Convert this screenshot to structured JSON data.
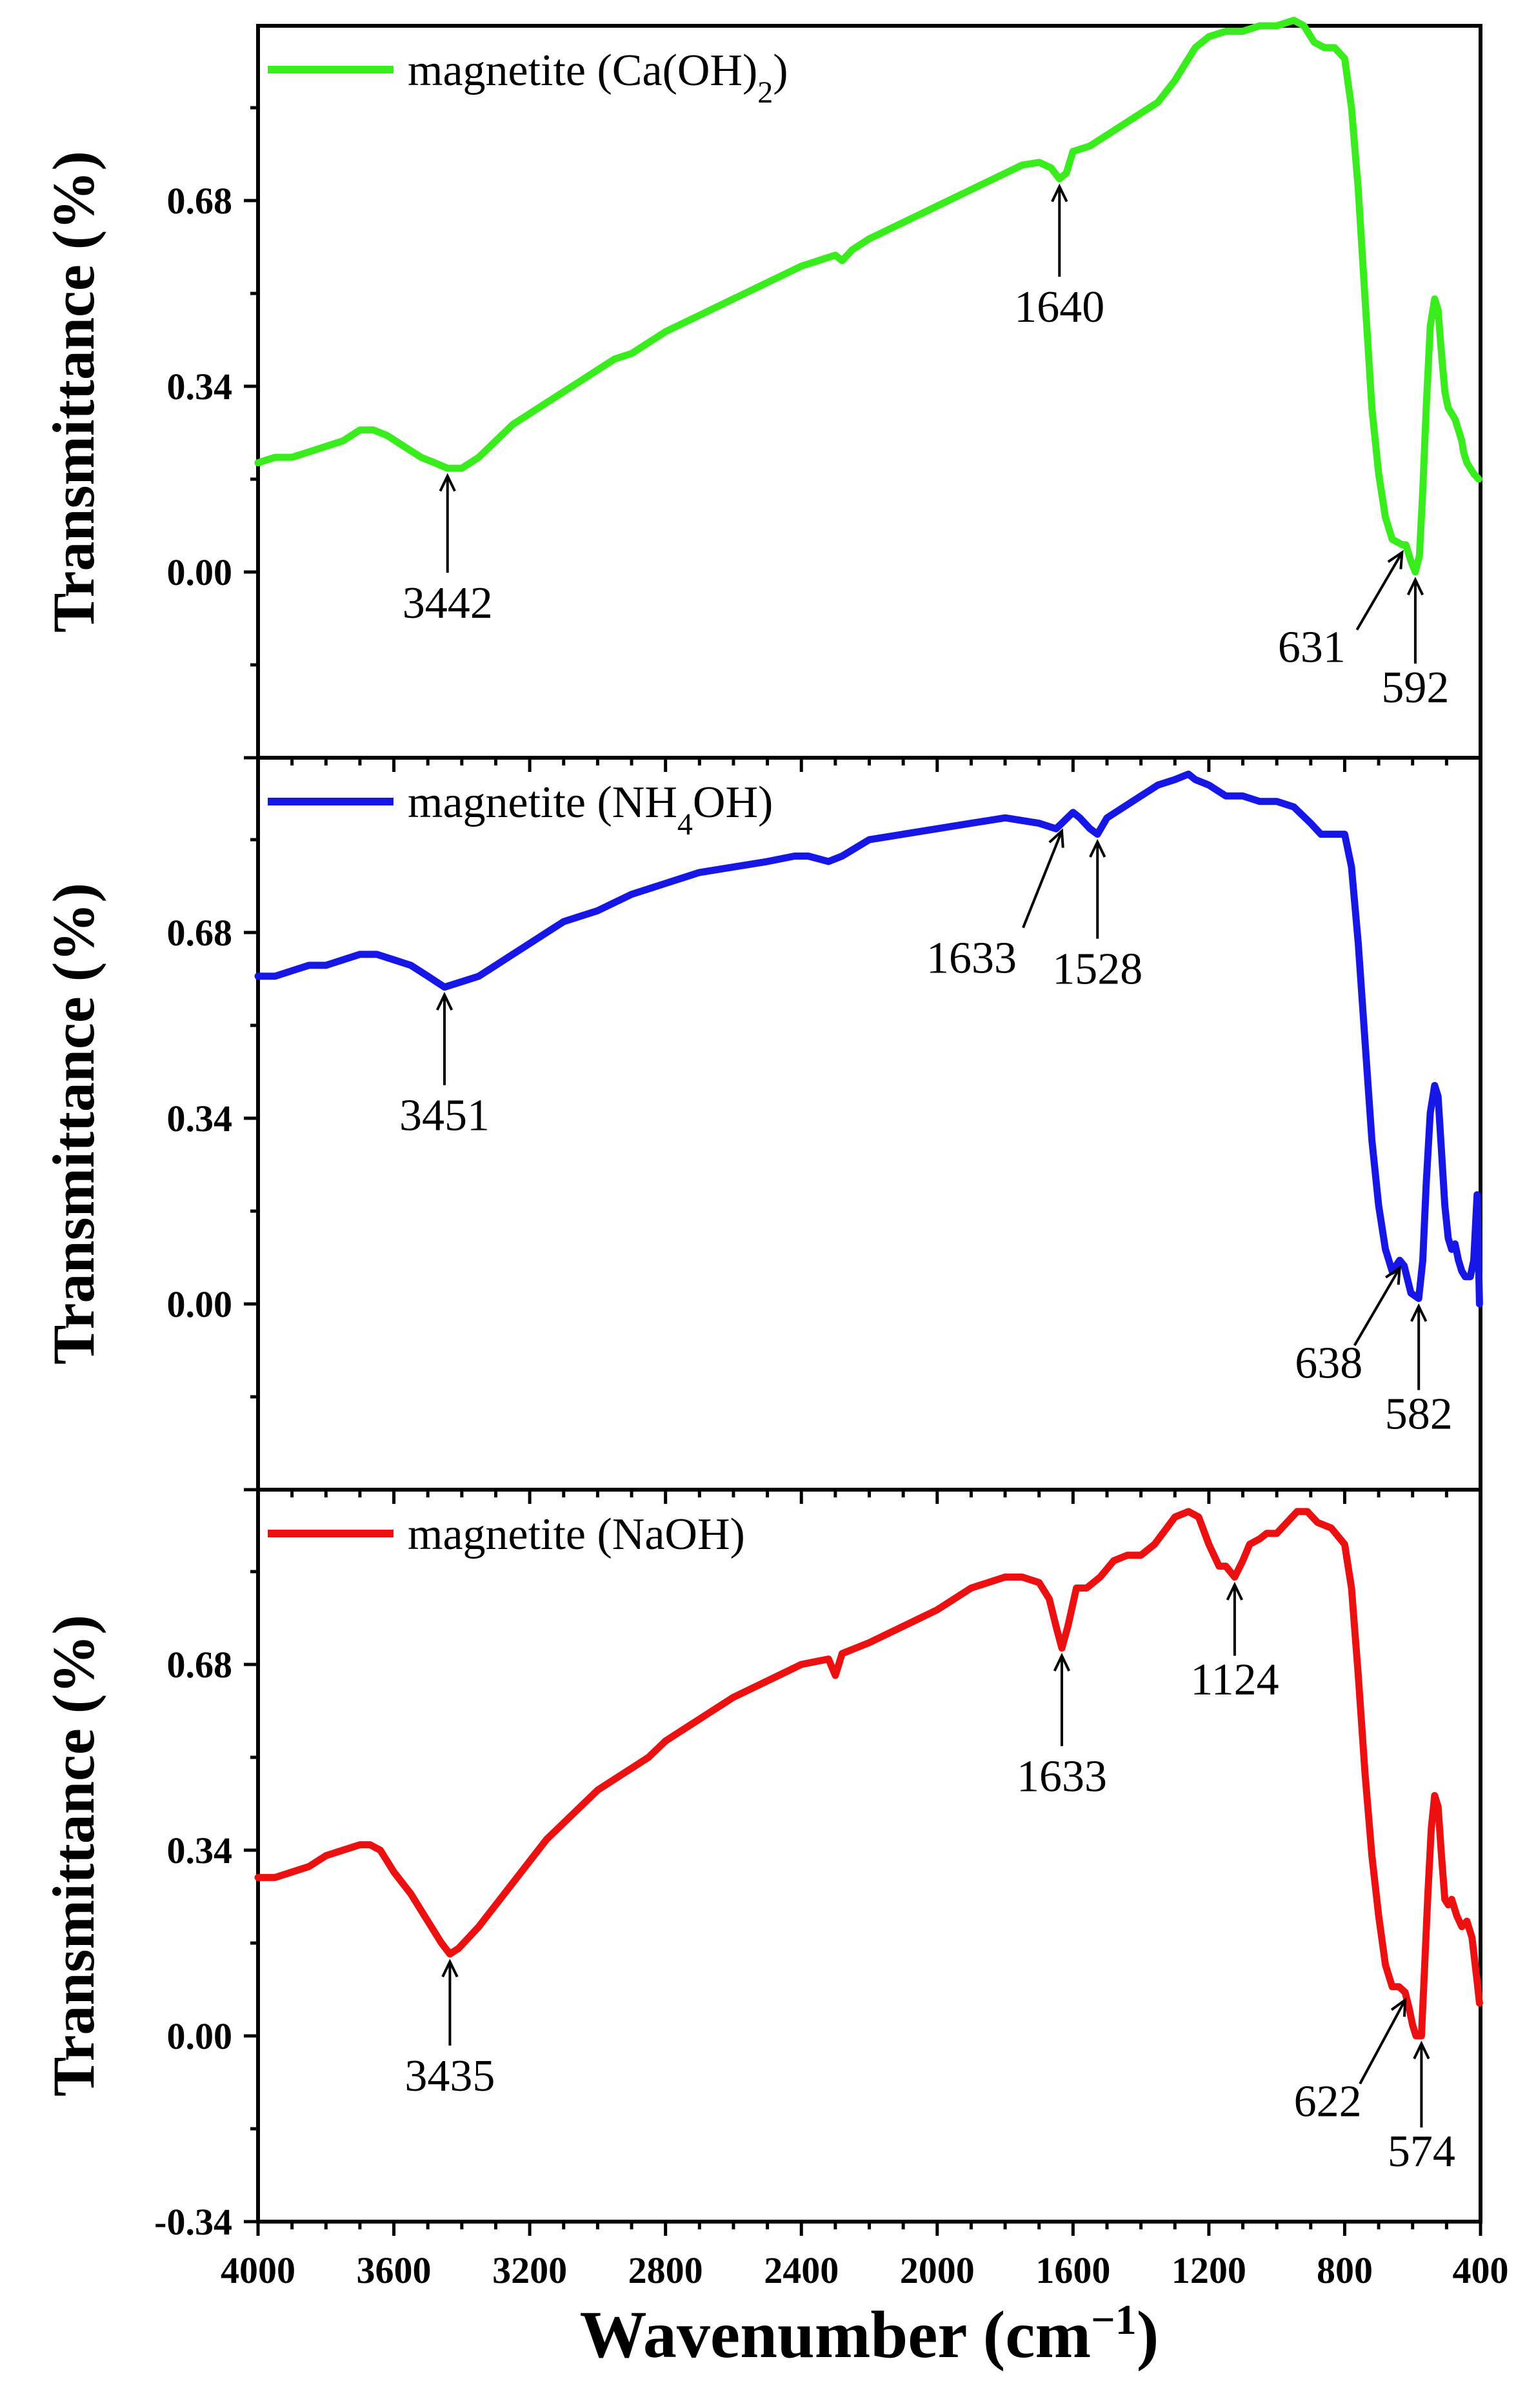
{
  "chart_data": [
    {
      "type": "line",
      "series": [
        {
          "name": "magnetite (Ca(OH)₂)",
          "color": "#39ec1c"
        }
      ],
      "legend_parts": {
        "main": "magnetite (Ca(OH)",
        "sub": "2",
        "tail": ")"
      },
      "ylabel": "Transmittance (%)",
      "yticks": [
        "0.00",
        "0.34",
        "0.68"
      ],
      "ylim": [
        -0.34,
        1.0
      ],
      "xlim": [
        4000,
        400
      ],
      "points": [
        [
          4000,
          0.2
        ],
        [
          3950,
          0.21
        ],
        [
          3900,
          0.21
        ],
        [
          3850,
          0.22
        ],
        [
          3800,
          0.23
        ],
        [
          3750,
          0.24
        ],
        [
          3700,
          0.26
        ],
        [
          3660,
          0.26
        ],
        [
          3620,
          0.25
        ],
        [
          3570,
          0.23
        ],
        [
          3520,
          0.21
        ],
        [
          3480,
          0.2
        ],
        [
          3442,
          0.19
        ],
        [
          3400,
          0.19
        ],
        [
          3350,
          0.21
        ],
        [
          3300,
          0.24
        ],
        [
          3250,
          0.27
        ],
        [
          3200,
          0.29
        ],
        [
          3150,
          0.31
        ],
        [
          3100,
          0.33
        ],
        [
          3050,
          0.35
        ],
        [
          3000,
          0.37
        ],
        [
          2950,
          0.39
        ],
        [
          2900,
          0.4
        ],
        [
          2850,
          0.42
        ],
        [
          2800,
          0.44
        ],
        [
          2700,
          0.47
        ],
        [
          2600,
          0.5
        ],
        [
          2500,
          0.53
        ],
        [
          2400,
          0.56
        ],
        [
          2300,
          0.58
        ],
        [
          2280,
          0.57
        ],
        [
          2250,
          0.59
        ],
        [
          2200,
          0.61
        ],
        [
          2100,
          0.64
        ],
        [
          2000,
          0.67
        ],
        [
          1900,
          0.7
        ],
        [
          1800,
          0.73
        ],
        [
          1750,
          0.745
        ],
        [
          1700,
          0.75
        ],
        [
          1665,
          0.74
        ],
        [
          1640,
          0.72
        ],
        [
          1620,
          0.73
        ],
        [
          1600,
          0.77
        ],
        [
          1550,
          0.78
        ],
        [
          1500,
          0.8
        ],
        [
          1450,
          0.82
        ],
        [
          1400,
          0.84
        ],
        [
          1350,
          0.86
        ],
        [
          1300,
          0.9
        ],
        [
          1260,
          0.94
        ],
        [
          1240,
          0.96
        ],
        [
          1200,
          0.98
        ],
        [
          1150,
          0.99
        ],
        [
          1100,
          0.99
        ],
        [
          1050,
          1.0
        ],
        [
          1000,
          1.0
        ],
        [
          950,
          1.01
        ],
        [
          920,
          1.0
        ],
        [
          890,
          0.97
        ],
        [
          860,
          0.96
        ],
        [
          830,
          0.96
        ],
        [
          800,
          0.94
        ],
        [
          780,
          0.85
        ],
        [
          760,
          0.7
        ],
        [
          740,
          0.5
        ],
        [
          720,
          0.3
        ],
        [
          700,
          0.18
        ],
        [
          680,
          0.1
        ],
        [
          660,
          0.06
        ],
        [
          631,
          0.05
        ],
        [
          620,
          0.05
        ],
        [
          605,
          0.02
        ],
        [
          592,
          0.0
        ],
        [
          580,
          0.03
        ],
        [
          570,
          0.15
        ],
        [
          560,
          0.3
        ],
        [
          548,
          0.45
        ],
        [
          535,
          0.5
        ],
        [
          525,
          0.48
        ],
        [
          515,
          0.4
        ],
        [
          505,
          0.33
        ],
        [
          495,
          0.3
        ],
        [
          485,
          0.29
        ],
        [
          475,
          0.28
        ],
        [
          465,
          0.26
        ],
        [
          455,
          0.24
        ],
        [
          450,
          0.22
        ],
        [
          440,
          0.2
        ],
        [
          420,
          0.18
        ],
        [
          405,
          0.17
        ]
      ],
      "annotations": [
        {
          "label": "3442",
          "wn": 3442,
          "y": 0.19
        },
        {
          "label": "1640",
          "wn": 1640,
          "y": 0.72
        },
        {
          "label": "631",
          "wn": 631,
          "y": 0.05
        },
        {
          "label": "592",
          "wn": 592,
          "y": 0.0
        }
      ]
    },
    {
      "type": "line",
      "series": [
        {
          "name": "magnetite (NH₄OH)",
          "color": "#1616e6"
        }
      ],
      "legend_parts": {
        "main": "magnetite (NH",
        "sub": "4",
        "tail": "OH)"
      },
      "ylabel": "Transmittance (%)",
      "yticks": [
        "0.00",
        "0.34",
        "0.68"
      ],
      "ylim": [
        -0.34,
        1.0
      ],
      "xlim": [
        4000,
        400
      ],
      "points": [
        [
          4000,
          0.6
        ],
        [
          3950,
          0.6
        ],
        [
          3900,
          0.61
        ],
        [
          3850,
          0.62
        ],
        [
          3800,
          0.62
        ],
        [
          3750,
          0.63
        ],
        [
          3700,
          0.64
        ],
        [
          3650,
          0.64
        ],
        [
          3600,
          0.63
        ],
        [
          3550,
          0.62
        ],
        [
          3500,
          0.6
        ],
        [
          3451,
          0.58
        ],
        [
          3400,
          0.59
        ],
        [
          3350,
          0.6
        ],
        [
          3300,
          0.62
        ],
        [
          3250,
          0.64
        ],
        [
          3200,
          0.66
        ],
        [
          3150,
          0.68
        ],
        [
          3100,
          0.7
        ],
        [
          3050,
          0.71
        ],
        [
          3000,
          0.72
        ],
        [
          2900,
          0.75
        ],
        [
          2800,
          0.77
        ],
        [
          2700,
          0.79
        ],
        [
          2600,
          0.8
        ],
        [
          2500,
          0.81
        ],
        [
          2420,
          0.82
        ],
        [
          2380,
          0.82
        ],
        [
          2320,
          0.81
        ],
        [
          2280,
          0.82
        ],
        [
          2200,
          0.85
        ],
        [
          2100,
          0.86
        ],
        [
          2000,
          0.87
        ],
        [
          1900,
          0.88
        ],
        [
          1800,
          0.89
        ],
        [
          1700,
          0.88
        ],
        [
          1650,
          0.87
        ],
        [
          1633,
          0.88
        ],
        [
          1600,
          0.9
        ],
        [
          1580,
          0.89
        ],
        [
          1550,
          0.87
        ],
        [
          1528,
          0.86
        ],
        [
          1500,
          0.89
        ],
        [
          1450,
          0.91
        ],
        [
          1400,
          0.93
        ],
        [
          1350,
          0.95
        ],
        [
          1300,
          0.96
        ],
        [
          1260,
          0.97
        ],
        [
          1240,
          0.96
        ],
        [
          1200,
          0.95
        ],
        [
          1150,
          0.93
        ],
        [
          1100,
          0.93
        ],
        [
          1050,
          0.92
        ],
        [
          1000,
          0.92
        ],
        [
          950,
          0.91
        ],
        [
          900,
          0.88
        ],
        [
          870,
          0.86
        ],
        [
          840,
          0.86
        ],
        [
          800,
          0.86
        ],
        [
          780,
          0.8
        ],
        [
          760,
          0.66
        ],
        [
          740,
          0.48
        ],
        [
          720,
          0.3
        ],
        [
          700,
          0.18
        ],
        [
          680,
          0.1
        ],
        [
          660,
          0.06
        ],
        [
          638,
          0.08
        ],
        [
          625,
          0.07
        ],
        [
          605,
          0.02
        ],
        [
          582,
          0.01
        ],
        [
          570,
          0.08
        ],
        [
          560,
          0.22
        ],
        [
          548,
          0.35
        ],
        [
          535,
          0.4
        ],
        [
          525,
          0.38
        ],
        [
          515,
          0.28
        ],
        [
          505,
          0.18
        ],
        [
          495,
          0.12
        ],
        [
          485,
          0.1
        ],
        [
          475,
          0.11
        ],
        [
          465,
          0.08
        ],
        [
          455,
          0.06
        ],
        [
          445,
          0.05
        ],
        [
          430,
          0.05
        ],
        [
          420,
          0.08
        ],
        [
          410,
          0.2
        ],
        [
          403,
          0.0
        ]
      ],
      "annotations": [
        {
          "label": "3451",
          "wn": 3451,
          "y": 0.58
        },
        {
          "label": "1633",
          "wn": 1633,
          "y": 0.88
        },
        {
          "label": "1528",
          "wn": 1528,
          "y": 0.86
        },
        {
          "label": "638",
          "wn": 638,
          "y": 0.08
        },
        {
          "label": "582",
          "wn": 582,
          "y": 0.01
        }
      ]
    },
    {
      "type": "line",
      "series": [
        {
          "name": "magnetite (NaOH)",
          "color": "#ec1010"
        }
      ],
      "legend_parts": {
        "main": "magnetite (NaOH)",
        "sub": "",
        "tail": ""
      },
      "ylabel": "Transmittance (%)",
      "xlabel": "Wavenumber (cm−1)",
      "xlabel_parts": {
        "main": "Wavenumber (cm",
        "sup": "−1",
        "tail": ")"
      },
      "yticks": [
        "-0.34",
        "0.00",
        "0.34",
        "0.68"
      ],
      "ylim": [
        -0.34,
        1.0
      ],
      "xlim": [
        4000,
        400
      ],
      "xticks": [
        "4000",
        "3600",
        "3200",
        "2800",
        "2400",
        "2000",
        "1600",
        "1200",
        "800",
        "400"
      ],
      "points": [
        [
          4000,
          0.29
        ],
        [
          3950,
          0.29
        ],
        [
          3900,
          0.3
        ],
        [
          3850,
          0.31
        ],
        [
          3800,
          0.33
        ],
        [
          3750,
          0.34
        ],
        [
          3700,
          0.35
        ],
        [
          3670,
          0.35
        ],
        [
          3640,
          0.34
        ],
        [
          3600,
          0.3
        ],
        [
          3550,
          0.26
        ],
        [
          3500,
          0.21
        ],
        [
          3460,
          0.17
        ],
        [
          3435,
          0.15
        ],
        [
          3410,
          0.16
        ],
        [
          3380,
          0.18
        ],
        [
          3350,
          0.2
        ],
        [
          3300,
          0.24
        ],
        [
          3250,
          0.28
        ],
        [
          3200,
          0.32
        ],
        [
          3150,
          0.36
        ],
        [
          3100,
          0.39
        ],
        [
          3050,
          0.42
        ],
        [
          3000,
          0.45
        ],
        [
          2950,
          0.47
        ],
        [
          2900,
          0.49
        ],
        [
          2850,
          0.51
        ],
        [
          2800,
          0.54
        ],
        [
          2700,
          0.58
        ],
        [
          2600,
          0.62
        ],
        [
          2500,
          0.65
        ],
        [
          2400,
          0.68
        ],
        [
          2320,
          0.69
        ],
        [
          2300,
          0.66
        ],
        [
          2280,
          0.7
        ],
        [
          2200,
          0.72
        ],
        [
          2100,
          0.75
        ],
        [
          2000,
          0.78
        ],
        [
          1900,
          0.82
        ],
        [
          1800,
          0.84
        ],
        [
          1750,
          0.84
        ],
        [
          1700,
          0.83
        ],
        [
          1670,
          0.8
        ],
        [
          1650,
          0.75
        ],
        [
          1633,
          0.71
        ],
        [
          1615,
          0.75
        ],
        [
          1590,
          0.82
        ],
        [
          1560,
          0.82
        ],
        [
          1520,
          0.84
        ],
        [
          1480,
          0.87
        ],
        [
          1440,
          0.88
        ],
        [
          1400,
          0.88
        ],
        [
          1360,
          0.9
        ],
        [
          1300,
          0.95
        ],
        [
          1260,
          0.96
        ],
        [
          1230,
          0.95
        ],
        [
          1200,
          0.9
        ],
        [
          1170,
          0.86
        ],
        [
          1150,
          0.86
        ],
        [
          1124,
          0.84
        ],
        [
          1100,
          0.87
        ],
        [
          1080,
          0.9
        ],
        [
          1050,
          0.91
        ],
        [
          1030,
          0.92
        ],
        [
          1000,
          0.92
        ],
        [
          970,
          0.94
        ],
        [
          940,
          0.96
        ],
        [
          910,
          0.96
        ],
        [
          880,
          0.94
        ],
        [
          840,
          0.93
        ],
        [
          800,
          0.9
        ],
        [
          780,
          0.82
        ],
        [
          760,
          0.66
        ],
        [
          740,
          0.48
        ],
        [
          720,
          0.33
        ],
        [
          700,
          0.22
        ],
        [
          680,
          0.13
        ],
        [
          660,
          0.09
        ],
        [
          640,
          0.09
        ],
        [
          622,
          0.08
        ],
        [
          610,
          0.05
        ],
        [
          600,
          0.02
        ],
        [
          590,
          0.0
        ],
        [
          574,
          0.0
        ],
        [
          565,
          0.12
        ],
        [
          555,
          0.26
        ],
        [
          545,
          0.38
        ],
        [
          535,
          0.44
        ],
        [
          525,
          0.42
        ],
        [
          515,
          0.33
        ],
        [
          505,
          0.25
        ],
        [
          495,
          0.24
        ],
        [
          485,
          0.25
        ],
        [
          470,
          0.22
        ],
        [
          455,
          0.2
        ],
        [
          440,
          0.21
        ],
        [
          425,
          0.18
        ],
        [
          410,
          0.1
        ],
        [
          403,
          0.06
        ]
      ],
      "annotations": [
        {
          "label": "3435",
          "wn": 3435,
          "y": 0.15
        },
        {
          "label": "1633",
          "wn": 1633,
          "y": 0.71
        },
        {
          "label": "1124",
          "wn": 1124,
          "y": 0.84
        },
        {
          "label": "622",
          "wn": 622,
          "y": 0.08
        },
        {
          "label": "574",
          "wn": 574,
          "y": 0.0
        }
      ]
    }
  ]
}
